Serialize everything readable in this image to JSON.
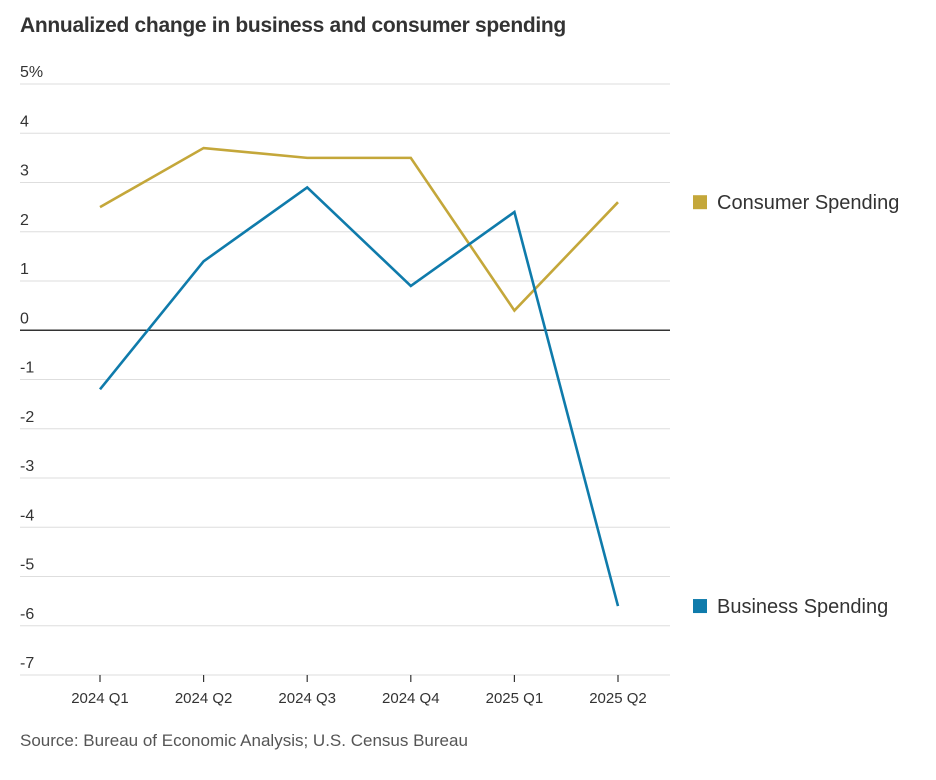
{
  "chart_data": {
    "type": "line",
    "title": "Annualized change in business and consumer spending",
    "xlabel": "",
    "ylabel": "",
    "categories": [
      "2024 Q1",
      "2024 Q2",
      "2024 Q3",
      "2024 Q4",
      "2025 Q1",
      "2025 Q2"
    ],
    "y_ticks": [
      5,
      4,
      3,
      2,
      1,
      0,
      -1,
      -2,
      -3,
      -4,
      -5,
      -6,
      -7
    ],
    "y_tick_labels": [
      "5%",
      "4",
      "3",
      "2",
      "1",
      "0",
      "-1",
      "-2",
      "-3",
      "-4",
      "-5",
      "-6",
      "-7"
    ],
    "ylim": [
      -7,
      5
    ],
    "grid": true,
    "legend_position": "right",
    "series": [
      {
        "name": "Consumer Spending",
        "color": "#c4a73a",
        "values": [
          2.5,
          3.7,
          3.5,
          3.5,
          0.4,
          2.6
        ]
      },
      {
        "name": "Business Spending",
        "color": "#0f7bab",
        "values": [
          -1.2,
          1.4,
          2.9,
          0.9,
          2.4,
          -5.6
        ]
      }
    ],
    "source": "Source: Bureau of Economic Analysis; U.S. Census Bureau"
  }
}
